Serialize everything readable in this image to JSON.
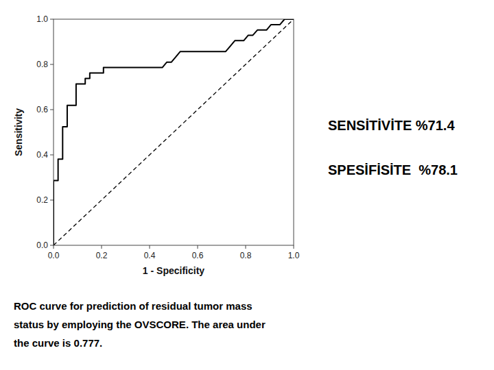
{
  "chart_data": {
    "type": "line",
    "x_label": "1 - Specificity",
    "y_label": "Sensitivity",
    "annotations": [
      "SENSİTİVİTE %71.4",
      "SPESİFİSİTE  %78.1"
    ],
    "caption": [
      "ROC curve for prediction of residual tumor mass",
      "status by employing the OVSCORE. The area under",
      "the curve is 0.777."
    ],
    "xlim": [
      0.0,
      1.0
    ],
    "ylim": [
      0.0,
      1.0
    ],
    "xticks": [
      {
        "value": 0.0,
        "label": "0.0"
      },
      0.2,
      0.4,
      0.6,
      0.8,
      {
        "value": 1.0,
        "label": "1.0"
      }
    ],
    "yticks": [
      {
        "value": 0.0,
        "label": "0.0"
      },
      0.2,
      0.4,
      0.6,
      0.8,
      {
        "value": 1.0,
        "label": "1.0"
      }
    ],
    "grid": false,
    "series": [
      {
        "color": "#000000",
        "line_style": "solid",
        "x": [
          0.0,
          0.0,
          0.0,
          0.0,
          0.0,
          0.0,
          0.0,
          0.019,
          0.019,
          0.019,
          0.038,
          0.038,
          0.038,
          0.038,
          0.057,
          0.057,
          0.057,
          0.075,
          0.094,
          0.094,
          0.094,
          0.094,
          0.113,
          0.132,
          0.132,
          0.151,
          0.151,
          0.17,
          0.189,
          0.208,
          0.208,
          0.226,
          0.245,
          0.264,
          0.283,
          0.302,
          0.321,
          0.34,
          0.358,
          0.377,
          0.396,
          0.415,
          0.434,
          0.453,
          0.472,
          0.491,
          0.509,
          0.528,
          0.547,
          0.566,
          0.585,
          0.604,
          0.623,
          0.642,
          0.66,
          0.679,
          0.698,
          0.717,
          0.736,
          0.755,
          0.774,
          0.792,
          0.811,
          0.83,
          0.849,
          0.868,
          0.887,
          0.906,
          0.925,
          0.943,
          0.962,
          0.981,
          1.0
        ],
        "values": [
          0.0,
          0.024,
          0.071,
          0.119,
          0.167,
          0.214,
          0.286,
          0.286,
          0.333,
          0.381,
          0.381,
          0.429,
          0.476,
          0.524,
          0.524,
          0.571,
          0.619,
          0.619,
          0.619,
          0.643,
          0.667,
          0.714,
          0.714,
          0.714,
          0.738,
          0.738,
          0.762,
          0.762,
          0.762,
          0.762,
          0.786,
          0.786,
          0.786,
          0.786,
          0.786,
          0.786,
          0.786,
          0.786,
          0.786,
          0.786,
          0.786,
          0.786,
          0.786,
          0.786,
          0.81,
          0.81,
          0.833,
          0.857,
          0.857,
          0.857,
          0.857,
          0.857,
          0.857,
          0.857,
          0.857,
          0.857,
          0.857,
          0.857,
          0.881,
          0.905,
          0.905,
          0.905,
          0.929,
          0.929,
          0.952,
          0.952,
          0.952,
          0.976,
          0.976,
          0.976,
          1.0,
          1.0,
          1.0
        ]
      },
      {
        "color": "#000000",
        "line_style": "dashed",
        "x": [
          0,
          1
        ],
        "values": [
          0,
          1
        ]
      }
    ]
  }
}
